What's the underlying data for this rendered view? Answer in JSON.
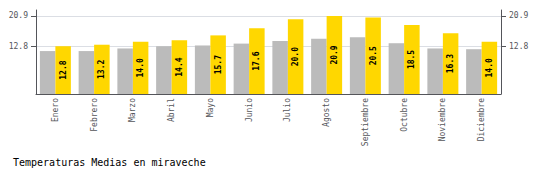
{
  "chart_data": {
    "type": "bar",
    "title": "Temperaturas Medias en miraveche",
    "categories": [
      "Enero",
      "Febrero",
      "Marzo",
      "Abril",
      "Mayo",
      "Junio",
      "Julio",
      "Agosto",
      "Septiembre",
      "Octubre",
      "Noviembre",
      "Diciembre"
    ],
    "series": [
      {
        "color": "#BBBBBB",
        "values": [
          11.5,
          11.5,
          12.2,
          12.8,
          13.0,
          13.5,
          14.2,
          14.8,
          15.2,
          13.6,
          12.2,
          12.0
        ]
      },
      {
        "color": "#FFD700",
        "values": [
          12.8,
          13.2,
          14.0,
          14.4,
          15.7,
          17.6,
          20.0,
          20.9,
          20.5,
          18.5,
          16.3,
          14.0
        ],
        "value_labels": [
          "12.8",
          "13.2",
          "14.0",
          "14.4",
          "15.7",
          "17.6",
          "20.0",
          "20.9",
          "20.5",
          "18.5",
          "16.3",
          "14.0"
        ],
        "data_labels": true
      }
    ],
    "ylim": [
      0,
      22.5
    ],
    "yticks": [
      12.8,
      20.9
    ],
    "y2lim": [
      0,
      22.5
    ],
    "y2ticks": [
      12.8,
      20.9
    ],
    "grid": true
  }
}
